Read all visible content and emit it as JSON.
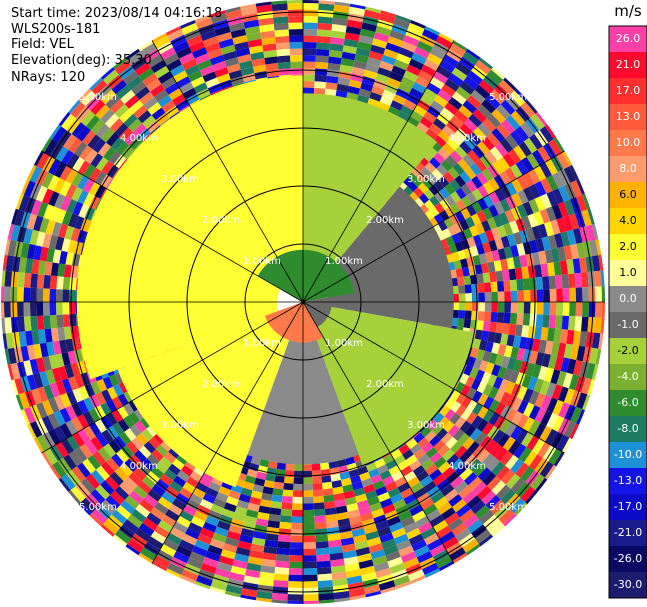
{
  "info": {
    "start_time": "Start time: 2023/08/14 04:16:18",
    "site": "WLS200s-181",
    "field": "Field: VEL",
    "elevation": "Elevation(deg): 35.30",
    "nrays": "NRays: 120"
  },
  "colorbar": {
    "unit": "m/s",
    "entries": [
      {
        "label": "26.0",
        "color": "#ff3fa8"
      },
      {
        "label": "21.0",
        "color": "#ff0a2e"
      },
      {
        "label": "17.0",
        "color": "#ff2f2f"
      },
      {
        "label": "13.0",
        "color": "#ff5a3c"
      },
      {
        "label": "10.0",
        "color": "#ff7a4a"
      },
      {
        "label": "8.0",
        "color": "#ff9c6e"
      },
      {
        "label": "6.0",
        "color": "#ffb300"
      },
      {
        "label": "4.0",
        "color": "#ffd400"
      },
      {
        "label": "2.0",
        "color": "#ffff33"
      },
      {
        "label": "1.0",
        "color": "#ffff99"
      },
      {
        "label": "0.0",
        "color": "#8a8a8a"
      },
      {
        "label": "-1.0",
        "color": "#6a6a6a"
      },
      {
        "label": "-2.0",
        "color": "#a6d13a"
      },
      {
        "label": "-4.0",
        "color": "#7bb030"
      },
      {
        "label": "-6.0",
        "color": "#2e8b2e"
      },
      {
        "label": "-8.0",
        "color": "#1e7a63"
      },
      {
        "label": "-10.0",
        "color": "#1e90d6"
      },
      {
        "label": "-13.0",
        "color": "#1414e6"
      },
      {
        "label": "-17.0",
        "color": "#0a0ac8"
      },
      {
        "label": "-21.0",
        "color": "#1a1a8a"
      },
      {
        "label": "-26.0",
        "color": "#0a0a64"
      },
      {
        "label": "-30.0",
        "color": "#1c1c6e"
      }
    ]
  },
  "chart_data": {
    "type": "heatmap",
    "nrays": 120,
    "range_rings": [
      {
        "label": "1.00km"
      },
      {
        "label": "2.00km"
      },
      {
        "label": "3.00km"
      },
      {
        "label": "4.00km"
      },
      {
        "label": "5.00km"
      }
    ],
    "sectors": [
      {
        "from_az": 250,
        "to_az": 360,
        "inner_km": 0.45,
        "outer_km": 3.9,
        "value": 2.0
      },
      {
        "from_az": 0,
        "to_az": 40,
        "inner_km": 0.45,
        "outer_km": 3.6,
        "value": -2.0
      },
      {
        "from_az": 40,
        "to_az": 100,
        "inner_km": 0.45,
        "outer_km": 2.6,
        "value": -1.0
      },
      {
        "from_az": 100,
        "to_az": 160,
        "inner_km": 0.45,
        "outer_km": 3.0,
        "value": -2.0
      },
      {
        "from_az": 160,
        "to_az": 200,
        "inner_km": 0.45,
        "outer_km": 2.8,
        "value": 0.0
      },
      {
        "from_az": 200,
        "to_az": 250,
        "inner_km": 0.45,
        "outer_km": 3.4,
        "value": 2.0
      },
      {
        "from_az": 300,
        "to_az": 80,
        "inner_km": 0.0,
        "outer_km": 0.9,
        "value": -6.0
      },
      {
        "from_az": 150,
        "to_az": 250,
        "inner_km": 0.0,
        "outer_km": 0.7,
        "value": 10.0
      },
      {
        "from_az": 80,
        "to_az": 150,
        "inner_km": 0.0,
        "outer_km": 0.5,
        "value": -1.0
      }
    ],
    "noise_region": "beyond ~2.5-3.9 km: random velocity values across the full colour scale"
  }
}
